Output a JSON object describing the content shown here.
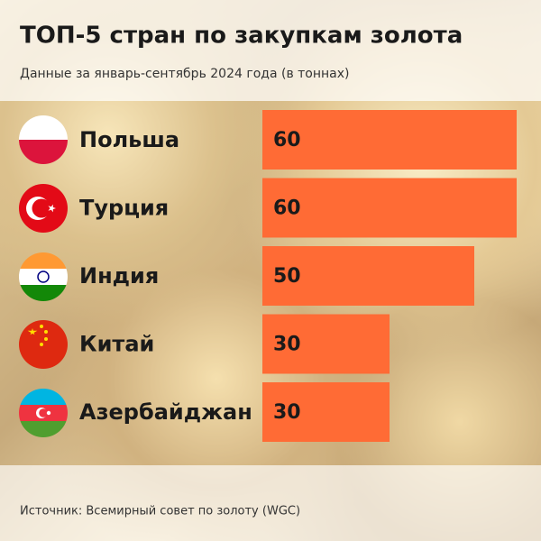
{
  "chart_data": {
    "type": "bar",
    "title": "ТОП-5 стран по закупкам золота",
    "subtitle": "Данные за январь-сентябрь 2024 года (в тоннах)",
    "source": "Источник: Всемирный совет по золоту (WGC)",
    "categories": [
      "Польша",
      "Турция",
      "Индия",
      "Китай",
      "Азербайджан"
    ],
    "values": [
      60,
      60,
      50,
      30,
      30
    ],
    "color": "#ff6b35"
  }
}
